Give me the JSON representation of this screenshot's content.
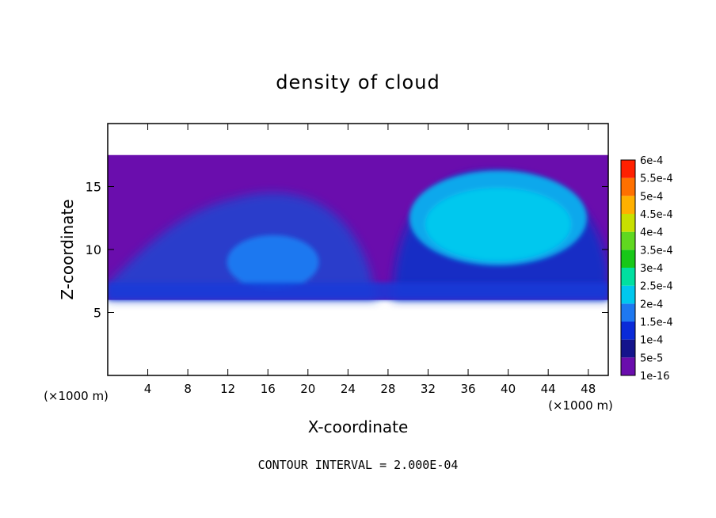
{
  "chart_data": {
    "type": "heatmap",
    "title": "density of cloud",
    "xlabel": "X-coordinate",
    "ylabel": "Z-coordinate",
    "x_unit_left": "(×1000 m)",
    "x_unit_right": "(×1000 m)",
    "footer": "CONTOUR INTERVAL = 2.000E-04",
    "xlim": [
      0,
      50
    ],
    "ylim": [
      0,
      20
    ],
    "x_ticks": [
      "4",
      "8",
      "12",
      "16",
      "20",
      "24",
      "28",
      "32",
      "36",
      "40",
      "44",
      "48"
    ],
    "y_ticks": [
      "5",
      "10",
      "15"
    ],
    "colorbar": {
      "labels": [
        "1e-16",
        "5e-5",
        "1e-4",
        "1.5e-4",
        "2e-4",
        "2.5e-4",
        "3e-4",
        "3.5e-4",
        "4e-4",
        "4.5e-4",
        "5e-4",
        "5.5e-4",
        "6e-4"
      ],
      "colors": [
        "#6a0dad",
        "#14148c",
        "#0a2ad8",
        "#1e78f0",
        "#00c8ee",
        "#00e0a0",
        "#18c818",
        "#60d820",
        "#c8e000",
        "#ffb000",
        "#ff7000",
        "#ff2000",
        "#ff8a8a"
      ]
    },
    "cloud_layer": {
      "base_z_km": 6,
      "top_z_km": 17.5,
      "max_density": "≈2e-4",
      "features": [
        {
          "x_km": 39,
          "z_km": 12.5,
          "density": "≈2e-4"
        },
        {
          "x_km": 16.5,
          "z_km": 9,
          "density": "≈1.5e-4"
        }
      ]
    }
  }
}
